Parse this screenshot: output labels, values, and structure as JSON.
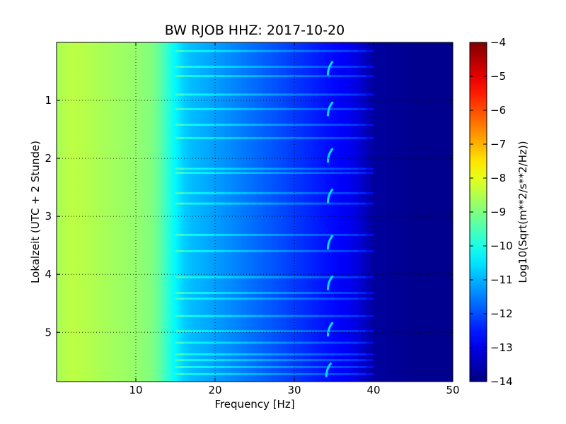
{
  "chart_data": {
    "type": "heatmap",
    "title": "BW RJOB HHZ: 2017-10-20",
    "xlabel": "Frequency [Hz]",
    "ylabel": "Lokalzeit (UTC + 2 Stunde)",
    "xlim": [
      0,
      50
    ],
    "ylim": [
      5.85,
      0.0
    ],
    "x_ticks": [
      10,
      20,
      30,
      40,
      50
    ],
    "y_ticks": [
      1,
      2,
      3,
      4,
      5
    ],
    "grid": true,
    "colormap": "jet",
    "colorbar": {
      "label": "Log10(Sqrt(m**2/s**2/Hz))",
      "range": [
        -14,
        -4
      ],
      "ticks": [
        -4,
        -5,
        -6,
        -7,
        -8,
        -9,
        -10,
        -11,
        -12,
        -13,
        -14
      ]
    },
    "spectrum_profile": {
      "frequency_hz": [
        0,
        2,
        4,
        6,
        8,
        10,
        12,
        13,
        14,
        15,
        16,
        17,
        18,
        20,
        22,
        24,
        26,
        28,
        30,
        32,
        34,
        36,
        37,
        38,
        39,
        40,
        45,
        50
      ],
      "log10_level": [
        -8.6,
        -8.4,
        -8.5,
        -8.6,
        -8.7,
        -8.8,
        -9.0,
        -9.3,
        -9.8,
        -10.3,
        -10.7,
        -10.9,
        -11.0,
        -11.2,
        -11.4,
        -11.6,
        -11.8,
        -12.0,
        -12.2,
        -12.4,
        -12.6,
        -12.8,
        -12.9,
        -13.1,
        -13.4,
        -13.7,
        -13.85,
        -13.85
      ]
    },
    "noise_bands_hours": [
      0.15,
      0.42,
      0.58,
      0.9,
      1.15,
      1.42,
      1.65,
      2.18,
      2.25,
      2.6,
      2.78,
      3.32,
      3.6,
      4.05,
      4.32,
      4.42,
      4.72,
      4.98,
      5.18,
      5.38,
      5.48,
      5.6,
      5.72
    ],
    "tonal_marks": [
      {
        "frequency_hz": 34.5,
        "time_h": 0.45
      },
      {
        "frequency_hz": 34.5,
        "time_h": 1.15
      },
      {
        "frequency_hz": 34.5,
        "time_h": 1.95
      },
      {
        "frequency_hz": 34.5,
        "time_h": 2.65
      },
      {
        "frequency_hz": 34.5,
        "time_h": 3.45
      },
      {
        "frequency_hz": 34.5,
        "time_h": 4.15
      },
      {
        "frequency_hz": 34.5,
        "time_h": 4.95
      },
      {
        "frequency_hz": 34.3,
        "time_h": 5.65
      }
    ]
  }
}
